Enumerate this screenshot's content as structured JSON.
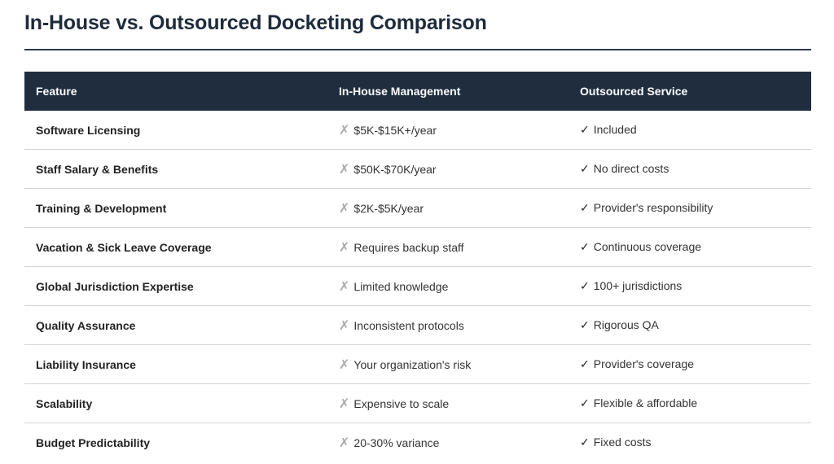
{
  "title": "In-House vs. Outsourced Docketing Comparison",
  "columns": [
    "Feature",
    "In-House Management",
    "Outsourced Service"
  ],
  "icons": {
    "in_house": "x-mark-icon",
    "outsourced": "check-mark-icon",
    "x_glyph": "✗",
    "check_glyph": "✓"
  },
  "rows": [
    {
      "feature": "Software Licensing",
      "in_house": "$5K-$15K+/year",
      "outsourced": "Included"
    },
    {
      "feature": "Staff Salary & Benefits",
      "in_house": "$50K-$70K/year",
      "outsourced": "No direct costs"
    },
    {
      "feature": "Training & Development",
      "in_house": "$2K-$5K/year",
      "outsourced": "Provider's responsibility"
    },
    {
      "feature": "Vacation & Sick Leave Coverage",
      "in_house": "Requires backup staff",
      "outsourced": "Continuous coverage"
    },
    {
      "feature": "Global Jurisdiction Expertise",
      "in_house": "Limited knowledge",
      "outsourced": "100+ jurisdictions"
    },
    {
      "feature": "Quality Assurance",
      "in_house": "Inconsistent protocols",
      "outsourced": "Rigorous QA"
    },
    {
      "feature": "Liability Insurance",
      "in_house": "Your organization's risk",
      "outsourced": "Provider's coverage"
    },
    {
      "feature": "Scalability",
      "in_house": "Expensive to scale",
      "outsourced": "Flexible & affordable"
    },
    {
      "feature": "Budget Predictability",
      "in_house": "20-30% variance",
      "outsourced": "Fixed costs"
    }
  ]
}
